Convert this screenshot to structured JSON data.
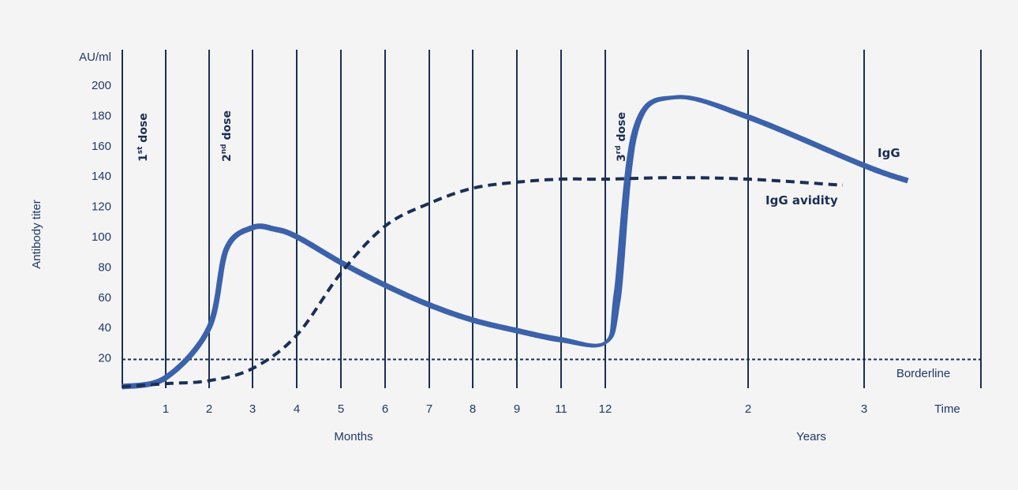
{
  "chart_data": {
    "type": "line",
    "y_unit_label": "AU/ml",
    "ylabel": "Antibody titer",
    "ylim": [
      0,
      200
    ],
    "y_ticks": [
      "20",
      "40",
      "60",
      "80",
      "100",
      "120",
      "140",
      "160",
      "180",
      "200"
    ],
    "x_ticks": [
      "1",
      "2",
      "3",
      "4",
      "5",
      "6",
      "7",
      "8",
      "9",
      "11",
      "12",
      "2",
      "3"
    ],
    "x_time_label": "Time",
    "x_group_labels": [
      "Months",
      "Years"
    ],
    "borderline": {
      "value": 19,
      "label": "Borderline"
    },
    "doses": [
      {
        "sup_base": "1",
        "sup": "st",
        "text": " dose",
        "at": "1"
      },
      {
        "sup_base": "2",
        "sup": "nd",
        "text": " dose",
        "at": "2"
      },
      {
        "sup_base": "3",
        "sup": "rd",
        "text": " dose",
        "at": "12 months"
      }
    ],
    "series": [
      {
        "name": "IgG",
        "color": "#3b62aa",
        "style": "solid",
        "points": [
          [
            "0",
            1
          ],
          [
            "1",
            7
          ],
          [
            "2",
            40
          ],
          [
            "2.4",
            92
          ],
          [
            "3",
            106
          ],
          [
            "3.5",
            105
          ],
          [
            "4",
            100
          ],
          [
            "5",
            83
          ],
          [
            "6",
            68
          ],
          [
            "7",
            55
          ],
          [
            "8",
            45
          ],
          [
            "9",
            38
          ],
          [
            "11",
            32
          ],
          [
            "12",
            30
          ],
          [
            "12+",
            60
          ],
          [
            "12++",
            170
          ],
          [
            "1.5 years",
            192
          ],
          [
            "2 years",
            179
          ],
          [
            "3 years",
            147
          ],
          [
            "3.4 years",
            137
          ]
        ]
      },
      {
        "name": "IgG avidity",
        "color": "#1a2f55",
        "style": "dashed",
        "points": [
          [
            "0",
            1
          ],
          [
            "1",
            3
          ],
          [
            "2",
            5
          ],
          [
            "3",
            13
          ],
          [
            "4",
            35
          ],
          [
            "5",
            76
          ],
          [
            "6",
            107
          ],
          [
            "7",
            122
          ],
          [
            "8",
            132
          ],
          [
            "9",
            136
          ],
          [
            "11",
            138
          ],
          [
            "12",
            138
          ],
          [
            "1.5 years",
            139
          ],
          [
            "2 years",
            138
          ],
          [
            "2.8 years",
            134
          ]
        ]
      }
    ]
  }
}
